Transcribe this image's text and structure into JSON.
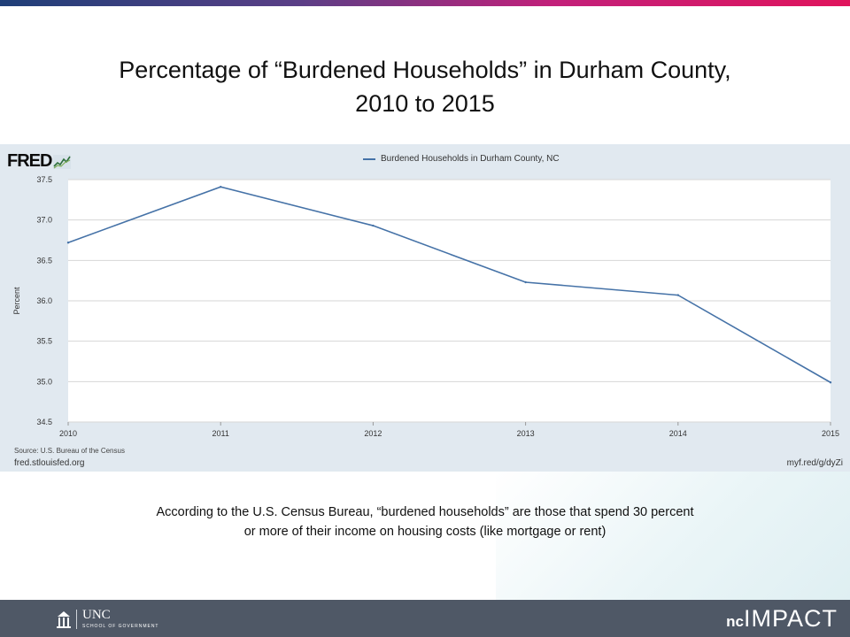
{
  "slide": {
    "title_line1": "Percentage of “Burdened Households” in Durham County,",
    "title_line2": "2010 to 2015",
    "caption_line1": "According to the U.S. Census Bureau, “burdened households” are those that spend 30 percent",
    "caption_line2": "or more of their income on housing costs (like mortgage or rent)",
    "footer_unc_name": "UNC",
    "footer_unc_sub": "SCHOOL OF GOVERNMENT",
    "footer_brand_nc": "nc",
    "footer_brand_impact": "IMPACT"
  },
  "fred": {
    "logo": "FRED",
    "source": "Source: U.S. Bureau of the Census",
    "site_left": "fred.stlouisfed.org",
    "site_right": "myf.red/g/dyZi"
  },
  "colors": {
    "series": "#4572a7",
    "panel": "#e1e9f0",
    "footer": "#4f5866"
  },
  "chart_data": {
    "type": "line",
    "title": "",
    "xlabel": "",
    "ylabel": "Percent",
    "x": [
      "2010",
      "2011",
      "2012",
      "2013",
      "2014",
      "2015"
    ],
    "series": [
      {
        "name": "Burdened Households in Durham County, NC",
        "values": [
          36.72,
          37.41,
          36.93,
          36.23,
          36.07,
          34.99
        ]
      }
    ],
    "ylim": [
      34.5,
      37.5
    ],
    "yticks": [
      "34.5",
      "35.0",
      "35.5",
      "36.0",
      "36.5",
      "37.0",
      "37.5"
    ],
    "grid": true,
    "legend": "top-center"
  }
}
